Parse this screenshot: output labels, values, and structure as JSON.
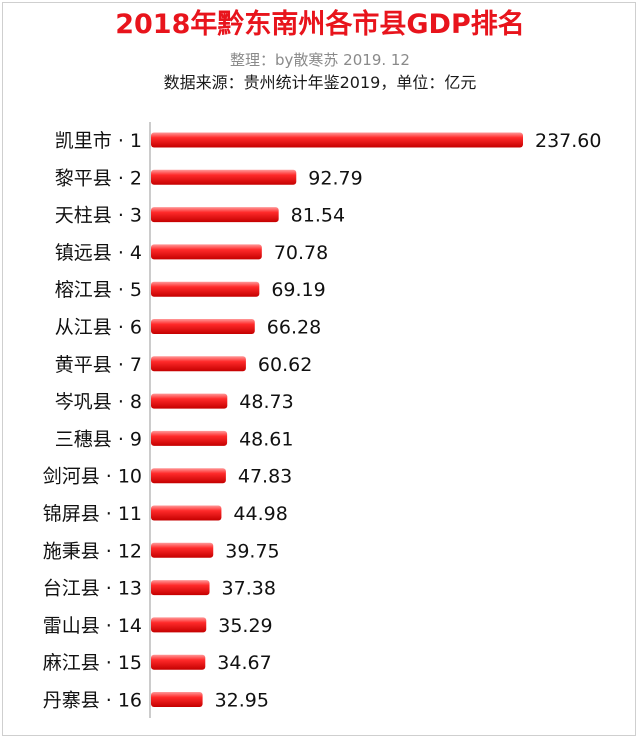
{
  "header": {
    "title": "2018年黔东南州各市县GDP排名",
    "credit": "整理：by散寒苏  2019. 12",
    "source": "数据来源：贵州统计年鉴2019，单位：亿元"
  },
  "chart_data": {
    "type": "bar",
    "orientation": "horizontal",
    "title": "2018年黔东南州各市县GDP排名",
    "unit": "亿元",
    "categories": [
      "凯里市 · 1",
      "黎平县 · 2",
      "天柱县 · 3",
      "镇远县 · 4",
      "榕江县 · 5",
      "从江县 · 6",
      "黄平县 · 7",
      "岑巩县 · 8",
      "三穗县 · 9",
      "剑河县 · 10",
      "锦屏县 · 11",
      "施秉县 · 12",
      "台江县 · 13",
      "雷山县 · 14",
      "麻江县 · 15",
      "丹寨县 · 16"
    ],
    "values": [
      237.6,
      92.79,
      81.54,
      70.78,
      69.19,
      66.28,
      60.62,
      48.73,
      48.61,
      47.83,
      44.98,
      39.75,
      37.38,
      35.29,
      34.67,
      32.95
    ],
    "value_labels": [
      "237.60",
      "92.79",
      "81.54",
      "70.78",
      "69.19",
      "66.28",
      "60.62",
      "48.73",
      "48.61",
      "47.83",
      "44.98",
      "39.75",
      "37.38",
      "35.29",
      "34.67",
      "32.95"
    ],
    "xlim": [
      0,
      237.6
    ],
    "grid": false,
    "colors": {
      "bar": "#e8141c",
      "bar_light": "#ff8a8a"
    }
  }
}
